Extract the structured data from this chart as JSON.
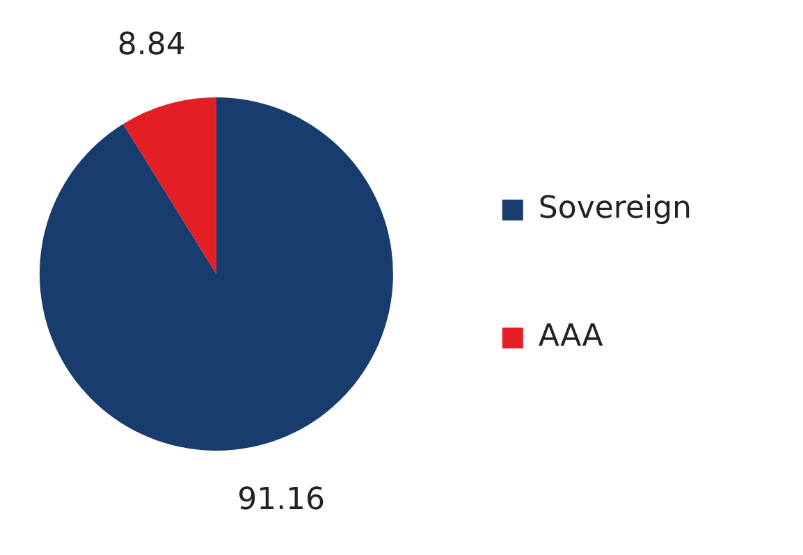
{
  "chart_data": {
    "type": "pie",
    "categories": [
      "Sovereign",
      "AAA"
    ],
    "values": [
      91.16,
      8.84
    ],
    "colors": [
      "#183c6e",
      "#e31e25"
    ],
    "data_labels": true,
    "legend": "right"
  }
}
